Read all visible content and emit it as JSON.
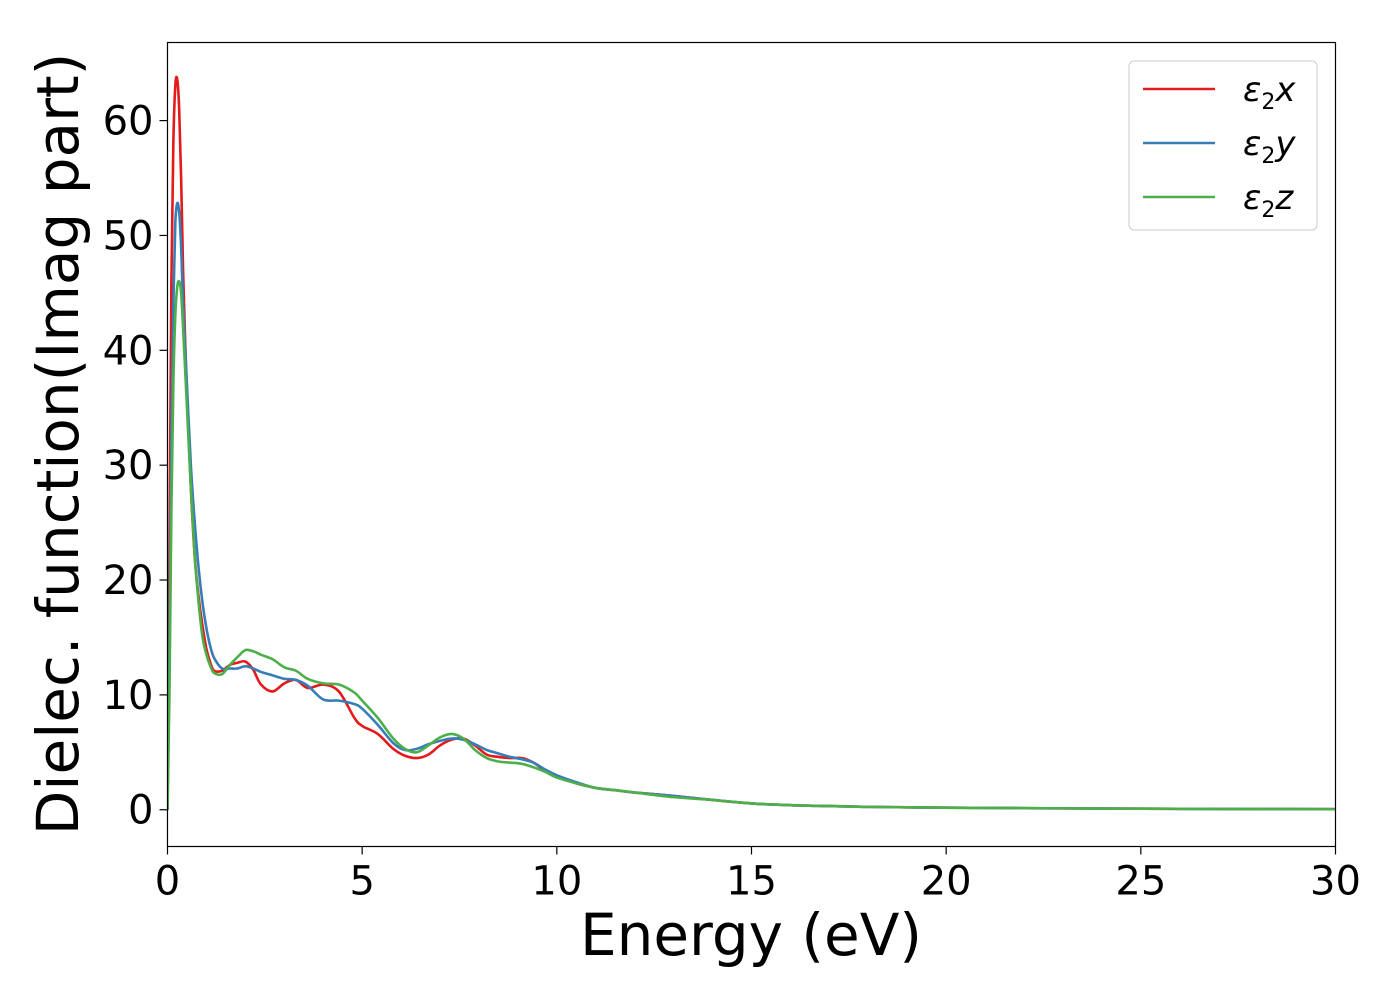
{
  "chart_data": {
    "type": "line",
    "title": "",
    "xlabel": "Energy (eV)",
    "ylabel": "Dielec. function(Imag part)",
    "xlim": [
      0,
      30
    ],
    "ylim": [
      -3.2,
      66.8
    ],
    "xticks": [
      0,
      5,
      10,
      15,
      20,
      25,
      30
    ],
    "yticks": [
      0,
      10,
      20,
      30,
      40,
      50,
      60
    ],
    "grid": false,
    "legend_position": "top-right",
    "series": [
      {
        "name": "ε2x",
        "legend": {
          "base": "ε",
          "sub": "2",
          "suffix": "x"
        },
        "color": "#e41a1c",
        "x": [
          0,
          0.05,
          0.1,
          0.15,
          0.2,
          0.25,
          0.3,
          0.35,
          0.4,
          0.5,
          0.6,
          0.7,
          0.8,
          0.9,
          1.0,
          1.1,
          1.2,
          1.4,
          1.6,
          1.8,
          2.0,
          2.2,
          2.4,
          2.7,
          3.0,
          3.3,
          3.6,
          4.0,
          4.4,
          4.8,
          5.0,
          5.4,
          5.8,
          6.1,
          6.4,
          6.7,
          7.0,
          7.3,
          7.6,
          7.9,
          8.2,
          8.5,
          8.8,
          9.1,
          9.4,
          9.7,
          10.0,
          10.5,
          11.0,
          11.5,
          12.0,
          13.0,
          14.0,
          15.0,
          16.0,
          17.0,
          18.0,
          19.0,
          20.0,
          22.0,
          24.0,
          26.0,
          28.0,
          30.0
        ],
        "values": [
          0.0,
          22.0,
          46.0,
          58.0,
          63.0,
          63.6,
          61.0,
          55.0,
          47.0,
          36.0,
          28.0,
          22.0,
          18.5,
          16.0,
          14.0,
          12.8,
          12.1,
          12.1,
          12.6,
          12.8,
          12.9,
          12.2,
          10.9,
          10.3,
          11.0,
          11.3,
          10.6,
          10.9,
          10.3,
          8.0,
          7.3,
          6.6,
          5.3,
          4.7,
          4.5,
          4.8,
          5.6,
          6.1,
          6.2,
          5.6,
          4.8,
          4.6,
          4.5,
          4.5,
          4.1,
          3.4,
          2.9,
          2.3,
          1.9,
          1.7,
          1.5,
          1.2,
          0.85,
          0.55,
          0.4,
          0.32,
          0.25,
          0.21,
          0.18,
          0.14,
          0.1,
          0.08,
          0.06,
          0.05
        ]
      },
      {
        "name": "ε2y",
        "legend": {
          "base": "ε",
          "sub": "2",
          "suffix": "y"
        },
        "color": "#377eb8",
        "x": [
          0,
          0.05,
          0.1,
          0.15,
          0.2,
          0.25,
          0.3,
          0.35,
          0.4,
          0.5,
          0.6,
          0.7,
          0.8,
          0.9,
          1.0,
          1.1,
          1.2,
          1.4,
          1.6,
          1.8,
          2.0,
          2.2,
          2.4,
          2.7,
          3.0,
          3.3,
          3.6,
          4.0,
          4.4,
          4.8,
          5.0,
          5.4,
          5.8,
          6.1,
          6.4,
          6.7,
          7.0,
          7.3,
          7.6,
          7.9,
          8.2,
          8.5,
          8.8,
          9.1,
          9.4,
          9.7,
          10.0,
          10.5,
          11.0,
          11.5,
          12.0,
          13.0,
          14.0,
          15.0,
          16.0,
          17.0,
          18.0,
          19.0,
          20.0,
          22.0,
          24.0,
          26.0,
          28.0,
          30.0
        ],
        "values": [
          0.0,
          14.0,
          32.0,
          44.0,
          51.0,
          52.8,
          52.0,
          49.0,
          44.0,
          37.0,
          30.0,
          25.0,
          21.0,
          18.0,
          15.8,
          14.2,
          13.2,
          12.3,
          12.3,
          12.3,
          12.5,
          12.3,
          12.0,
          11.7,
          11.4,
          11.3,
          10.8,
          9.6,
          9.5,
          9.2,
          8.8,
          7.4,
          5.8,
          5.2,
          5.3,
          5.7,
          6.0,
          6.2,
          6.1,
          5.7,
          5.2,
          4.9,
          4.6,
          4.4,
          4.1,
          3.5,
          3.0,
          2.4,
          1.9,
          1.7,
          1.5,
          1.2,
          0.85,
          0.55,
          0.4,
          0.32,
          0.25,
          0.21,
          0.18,
          0.14,
          0.1,
          0.08,
          0.06,
          0.05
        ]
      },
      {
        "name": "ε2z",
        "legend": {
          "base": "ε",
          "sub": "2",
          "suffix": "z"
        },
        "color": "#4daf4a",
        "x": [
          0,
          0.05,
          0.1,
          0.15,
          0.2,
          0.25,
          0.3,
          0.35,
          0.4,
          0.5,
          0.6,
          0.7,
          0.8,
          0.9,
          1.0,
          1.1,
          1.2,
          1.4,
          1.6,
          1.8,
          2.0,
          2.2,
          2.4,
          2.7,
          3.0,
          3.3,
          3.6,
          4.0,
          4.4,
          4.8,
          5.0,
          5.4,
          5.8,
          6.1,
          6.4,
          6.7,
          7.0,
          7.3,
          7.6,
          7.9,
          8.2,
          8.5,
          8.8,
          9.1,
          9.4,
          9.7,
          10.0,
          10.5,
          11.0,
          11.5,
          12.0,
          13.0,
          14.0,
          15.0,
          16.0,
          17.0,
          18.0,
          19.0,
          20.0,
          22.0,
          24.0,
          26.0,
          28.0,
          30.0
        ],
        "values": [
          0.0,
          10.0,
          26.0,
          37.0,
          43.0,
          45.5,
          46.0,
          45.0,
          42.0,
          35.0,
          28.0,
          22.0,
          18.0,
          15.0,
          13.5,
          12.5,
          11.9,
          11.8,
          12.6,
          13.3,
          13.9,
          13.8,
          13.5,
          13.1,
          12.4,
          12.1,
          11.4,
          11.0,
          10.9,
          10.2,
          9.5,
          8.0,
          6.2,
          5.3,
          5.0,
          5.6,
          6.3,
          6.6,
          6.2,
          5.2,
          4.5,
          4.2,
          4.1,
          4.0,
          3.7,
          3.3,
          2.8,
          2.3,
          1.9,
          1.7,
          1.5,
          1.1,
          0.85,
          0.55,
          0.4,
          0.32,
          0.25,
          0.21,
          0.18,
          0.14,
          0.1,
          0.08,
          0.06,
          0.05
        ]
      }
    ]
  }
}
